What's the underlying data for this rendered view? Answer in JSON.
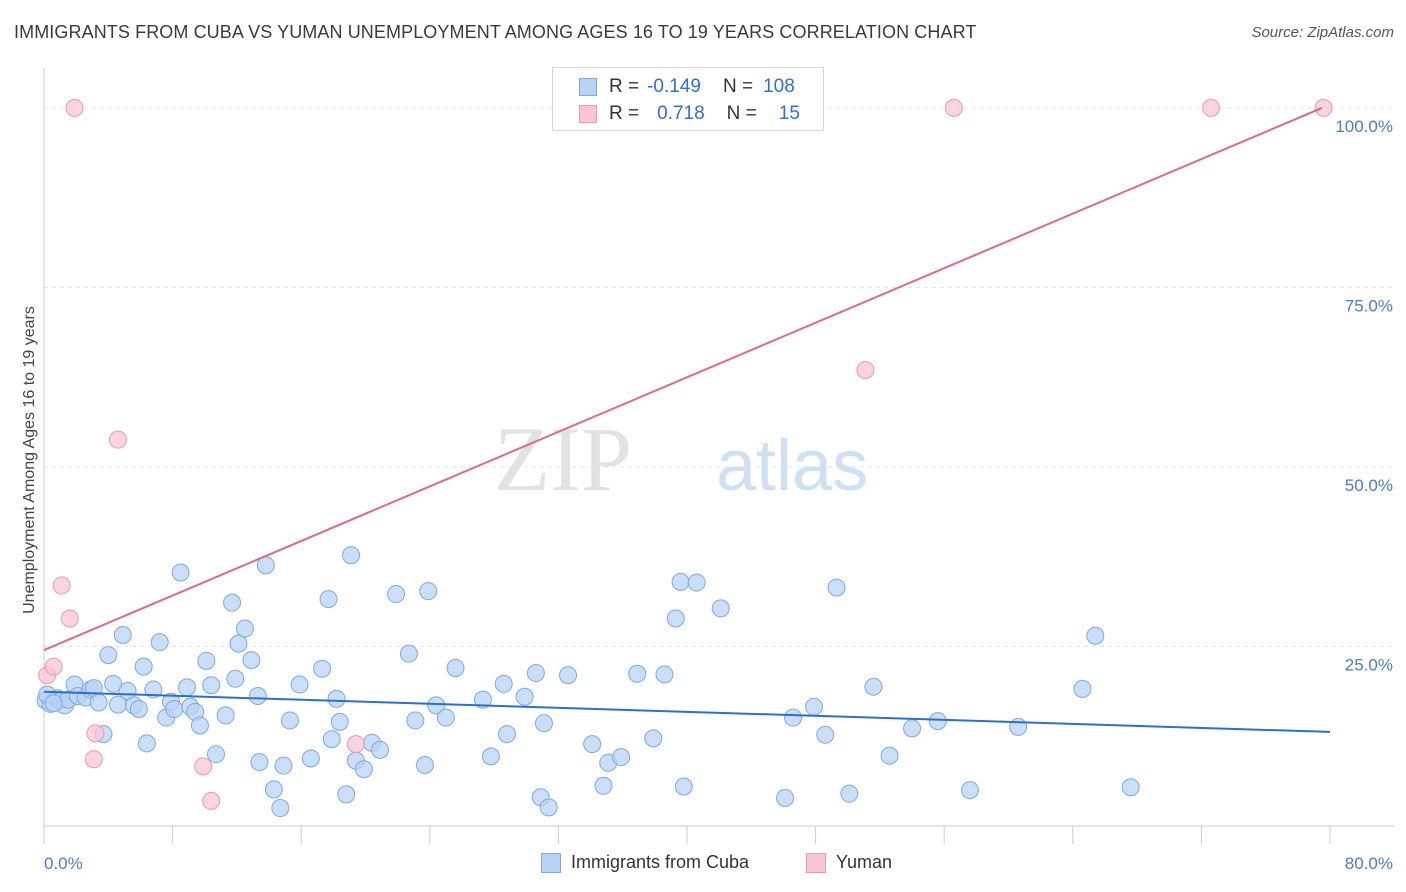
{
  "title": "IMMIGRANTS FROM CUBA VS YUMAN UNEMPLOYMENT AMONG AGES 16 TO 19 YEARS CORRELATION CHART",
  "source": "Source: ZipAtlas.com",
  "watermark": {
    "zip": "ZIP",
    "atlas": "atlas"
  },
  "colors": {
    "blue_fill": "#b9d3f4",
    "blue_stroke": "#7fa9df",
    "blue_line": "#2c6fce",
    "pink_fill": "#f8c6d4",
    "pink_stroke": "#ea9ab1",
    "pink_line": "#e0678d",
    "tick_text": "#4a7cc9",
    "grid": "#e3e3e3"
  },
  "legend": {
    "row1": {
      "r_label": "R =",
      "r_value": "-0.149",
      "n_label": "N =",
      "n_value": "108"
    },
    "row2": {
      "r_label": "R =",
      "r_value": "0.718",
      "n_label": "N =",
      "n_value": "15"
    }
  },
  "chart_data": {
    "type": "scatter",
    "title": "IMMIGRANTS FROM CUBA VS YUMAN UNEMPLOYMENT AMONG AGES 16 TO 19 YEARS CORRELATION CHART",
    "xlabel": "",
    "ylabel": "Unemployment Among Ages 16 to 19 years",
    "xlim": [
      0,
      80
    ],
    "ylim": [
      0,
      105
    ],
    "x_tick_labels": {
      "left": "0.0%",
      "right": "80.0%"
    },
    "y_ticks": [
      {
        "value": 25,
        "label": "25.0%"
      },
      {
        "value": 50,
        "label": "50.0%"
      },
      {
        "value": 75,
        "label": "75.0%"
      },
      {
        "value": 100,
        "label": "100.0%"
      }
    ],
    "series": [
      {
        "name": "Immigrants from Cuba",
        "color": "#b9d3f4",
        "trend": {
          "x": [
            0,
            80
          ],
          "y": [
            18.7,
            13.1
          ]
        },
        "points": [
          [
            0.1,
            17.5
          ],
          [
            0.4,
            17.0
          ],
          [
            0.8,
            17.8
          ],
          [
            1.0,
            17.5
          ],
          [
            1.3,
            16.8
          ],
          [
            1.5,
            17.6
          ],
          [
            1.9,
            19.7
          ],
          [
            2.1,
            18.1
          ],
          [
            2.6,
            17.9
          ],
          [
            2.9,
            19.0
          ],
          [
            3.1,
            19.2
          ],
          [
            3.4,
            17.2
          ],
          [
            3.7,
            12.8
          ],
          [
            4.0,
            23.8
          ],
          [
            4.3,
            19.8
          ],
          [
            4.6,
            16.9
          ],
          [
            4.9,
            26.6
          ],
          [
            5.2,
            18.8
          ],
          [
            5.6,
            16.8
          ],
          [
            5.9,
            16.3
          ],
          [
            6.2,
            22.2
          ],
          [
            6.4,
            11.5
          ],
          [
            6.8,
            19.0
          ],
          [
            7.2,
            25.6
          ],
          [
            7.6,
            15.1
          ],
          [
            7.9,
            17.3
          ],
          [
            8.1,
            16.3
          ],
          [
            8.5,
            35.3
          ],
          [
            8.9,
            19.3
          ],
          [
            9.1,
            16.6
          ],
          [
            9.4,
            15.9
          ],
          [
            9.7,
            14.0
          ],
          [
            10.1,
            23.0
          ],
          [
            10.4,
            19.6
          ],
          [
            10.7,
            10.0
          ],
          [
            11.3,
            15.4
          ],
          [
            11.7,
            31.1
          ],
          [
            11.9,
            20.5
          ],
          [
            12.1,
            25.4
          ],
          [
            12.5,
            27.5
          ],
          [
            12.9,
            23.1
          ],
          [
            13.3,
            18.1
          ],
          [
            13.4,
            8.9
          ],
          [
            13.8,
            36.3
          ],
          [
            14.3,
            5.1
          ],
          [
            14.7,
            2.5
          ],
          [
            14.9,
            8.4
          ],
          [
            15.3,
            14.7
          ],
          [
            15.9,
            19.7
          ],
          [
            16.6,
            9.4
          ],
          [
            17.3,
            21.9
          ],
          [
            17.7,
            31.6
          ],
          [
            17.9,
            12.1
          ],
          [
            18.2,
            17.7
          ],
          [
            18.4,
            14.5
          ],
          [
            18.8,
            4.4
          ],
          [
            19.1,
            37.7
          ],
          [
            19.4,
            9.1
          ],
          [
            19.9,
            7.9
          ],
          [
            20.4,
            11.6
          ],
          [
            20.9,
            10.6
          ],
          [
            21.9,
            32.3
          ],
          [
            22.7,
            24.0
          ],
          [
            23.1,
            14.7
          ],
          [
            23.7,
            8.5
          ],
          [
            23.9,
            32.7
          ],
          [
            24.4,
            16.8
          ],
          [
            25.0,
            15.1
          ],
          [
            25.6,
            22.0
          ],
          [
            27.3,
            17.6
          ],
          [
            27.8,
            9.7
          ],
          [
            28.6,
            19.8
          ],
          [
            28.8,
            12.8
          ],
          [
            29.9,
            18.0
          ],
          [
            30.6,
            21.3
          ],
          [
            30.9,
            4.0
          ],
          [
            31.1,
            14.3
          ],
          [
            31.4,
            2.6
          ],
          [
            32.6,
            21.0
          ],
          [
            34.1,
            11.4
          ],
          [
            34.8,
            5.6
          ],
          [
            35.1,
            8.8
          ],
          [
            35.9,
            9.6
          ],
          [
            36.9,
            21.2
          ],
          [
            37.9,
            12.2
          ],
          [
            38.6,
            21.1
          ],
          [
            39.3,
            28.9
          ],
          [
            39.6,
            34.0
          ],
          [
            39.8,
            5.5
          ],
          [
            40.6,
            33.9
          ],
          [
            42.1,
            30.3
          ],
          [
            46.1,
            3.9
          ],
          [
            46.6,
            15.1
          ],
          [
            47.9,
            16.6
          ],
          [
            48.6,
            12.7
          ],
          [
            49.3,
            33.2
          ],
          [
            50.1,
            4.5
          ],
          [
            51.6,
            19.4
          ],
          [
            52.6,
            9.8
          ],
          [
            54.0,
            13.6
          ],
          [
            55.6,
            14.6
          ],
          [
            57.6,
            5.0
          ],
          [
            60.6,
            13.8
          ],
          [
            64.6,
            19.1
          ],
          [
            65.4,
            26.5
          ],
          [
            67.6,
            5.4
          ],
          [
            0.2,
            18.3
          ],
          [
            0.6,
            17.1
          ]
        ]
      },
      {
        "name": "Yuman",
        "color": "#f8c6d4",
        "trend": {
          "x": [
            0,
            79.5
          ],
          "y": [
            24.5,
            100.0
          ]
        },
        "points": [
          [
            0.2,
            21.0
          ],
          [
            0.6,
            22.2
          ],
          [
            1.1,
            33.5
          ],
          [
            1.6,
            28.9
          ],
          [
            1.9,
            100.0
          ],
          [
            3.1,
            9.3
          ],
          [
            3.2,
            12.9
          ],
          [
            4.6,
            53.8
          ],
          [
            9.9,
            8.3
          ],
          [
            10.4,
            3.5
          ],
          [
            19.4,
            11.4
          ],
          [
            51.1,
            63.5
          ],
          [
            56.6,
            100.0
          ],
          [
            72.6,
            100.0
          ],
          [
            79.6,
            100.0
          ]
        ]
      }
    ],
    "legend": {
      "position": "bottom-center",
      "entries": [
        "Immigrants from Cuba",
        "Yuman"
      ]
    }
  }
}
